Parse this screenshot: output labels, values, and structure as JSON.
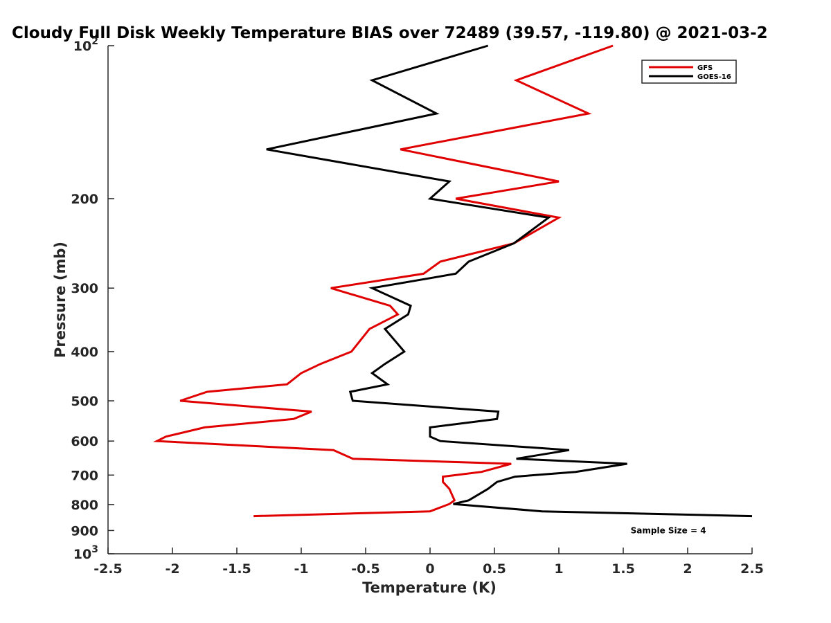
{
  "chart_data": {
    "type": "line",
    "title": "Cloudy Full Disk Weekly Temperature BIAS over 72489 (39.57, -119.80) @ 2021-03-2",
    "xlabel": "Temperature (K)",
    "ylabel": "Pressure (mb)",
    "xlim": [
      -2.5,
      2.5
    ],
    "ylim": [
      100,
      1000
    ],
    "y_scale": "log",
    "y_reversed": true,
    "grid": false,
    "legend_position": "top-right",
    "x_ticks": [
      {
        "value": -2.5,
        "label": "-2.5"
      },
      {
        "value": -2,
        "label": "-2"
      },
      {
        "value": -1.5,
        "label": "-1.5"
      },
      {
        "value": -1,
        "label": "-1"
      },
      {
        "value": -0.5,
        "label": "-0.5"
      },
      {
        "value": 0,
        "label": "0"
      },
      {
        "value": 0.5,
        "label": "0.5"
      },
      {
        "value": 1,
        "label": "1"
      },
      {
        "value": 1.5,
        "label": "1.5"
      },
      {
        "value": 2,
        "label": "2"
      },
      {
        "value": 2.5,
        "label": "2.5"
      }
    ],
    "y_ticks": [
      {
        "value": 100,
        "label": "10",
        "sup": "2"
      },
      {
        "value": 200,
        "label": "200"
      },
      {
        "value": 300,
        "label": "300"
      },
      {
        "value": 400,
        "label": "400"
      },
      {
        "value": 500,
        "label": "500"
      },
      {
        "value": 600,
        "label": "600"
      },
      {
        "value": 700,
        "label": "700"
      },
      {
        "value": 800,
        "label": "800"
      },
      {
        "value": 900,
        "label": "900"
      },
      {
        "value": 1000,
        "label": "10",
        "sup": "3"
      }
    ],
    "series": [
      {
        "name": "GFS",
        "color": "#e00000",
        "points": [
          [
            1.42,
            100
          ],
          [
            0.67,
            117
          ],
          [
            1.23,
            136
          ],
          [
            -0.23,
            160
          ],
          [
            1.0,
            185
          ],
          [
            0.2,
            200
          ],
          [
            1.0,
            218
          ],
          [
            0.65,
            245
          ],
          [
            0.08,
            266
          ],
          [
            -0.05,
            281
          ],
          [
            -0.77,
            300
          ],
          [
            -0.31,
            325
          ],
          [
            -0.25,
            338
          ],
          [
            -0.47,
            361
          ],
          [
            -0.61,
            400
          ],
          [
            -0.85,
            423
          ],
          [
            -1.0,
            441
          ],
          [
            -1.11,
            464
          ],
          [
            -1.73,
            480
          ],
          [
            -1.94,
            500
          ],
          [
            -0.92,
            525
          ],
          [
            -1.06,
            543
          ],
          [
            -1.75,
            564
          ],
          [
            -2.05,
            588
          ],
          [
            -2.12,
            600
          ],
          [
            -0.75,
            625
          ],
          [
            -0.6,
            650
          ],
          [
            0.63,
            665
          ],
          [
            0.4,
            690
          ],
          [
            0.1,
            705
          ],
          [
            0.1,
            722
          ],
          [
            0.15,
            745
          ],
          [
            0.19,
            785
          ],
          [
            0.15,
            798
          ],
          [
            0.0,
            825
          ],
          [
            -1.37,
            843
          ]
        ]
      },
      {
        "name": "GOES-16",
        "color": "#000000",
        "points": [
          [
            0.45,
            100
          ],
          [
            -0.45,
            117
          ],
          [
            0.05,
            136
          ],
          [
            -1.27,
            160
          ],
          [
            0.15,
            185
          ],
          [
            0.0,
            200
          ],
          [
            0.92,
            218
          ],
          [
            0.65,
            245
          ],
          [
            0.3,
            266
          ],
          [
            0.2,
            281
          ],
          [
            -0.45,
            300
          ],
          [
            -0.15,
            325
          ],
          [
            -0.17,
            338
          ],
          [
            -0.35,
            361
          ],
          [
            -0.2,
            400
          ],
          [
            -0.35,
            423
          ],
          [
            -0.45,
            441
          ],
          [
            -0.33,
            464
          ],
          [
            -0.62,
            480
          ],
          [
            -0.6,
            500
          ],
          [
            0.53,
            525
          ],
          [
            0.52,
            543
          ],
          [
            0.0,
            564
          ],
          [
            0.0,
            588
          ],
          [
            0.08,
            600
          ],
          [
            1.08,
            625
          ],
          [
            0.67,
            650
          ],
          [
            1.53,
            665
          ],
          [
            1.13,
            690
          ],
          [
            0.66,
            705
          ],
          [
            0.52,
            722
          ],
          [
            0.45,
            745
          ],
          [
            0.3,
            785
          ],
          [
            0.18,
            798
          ],
          [
            0.87,
            825
          ],
          [
            2.5,
            843
          ]
        ]
      }
    ],
    "annotations": [
      {
        "text": "Sample Size = 4",
        "x": 1.85,
        "y": 900
      }
    ]
  }
}
